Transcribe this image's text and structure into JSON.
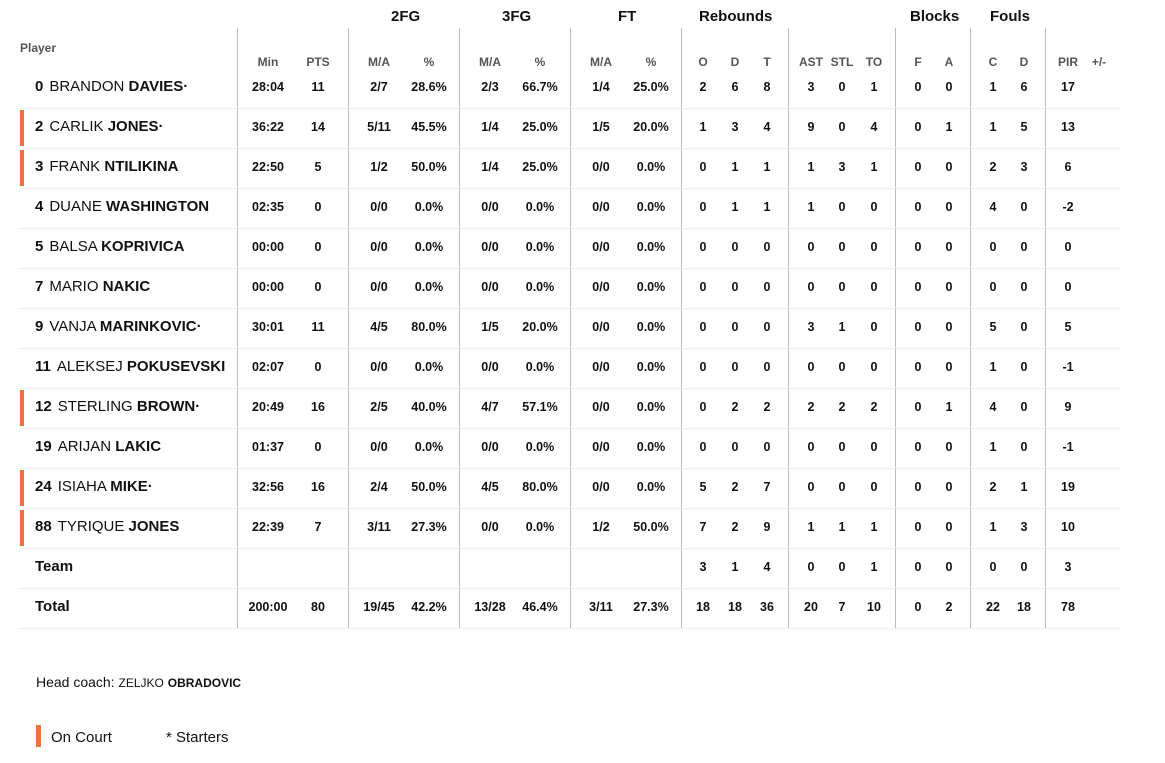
{
  "colors": {
    "on_court": "#e8743b",
    "divider": "#bdbdbd"
  },
  "group_headers": {
    "fg2": "2FG",
    "fg3": "3FG",
    "ft": "FT",
    "reb": "Rebounds",
    "blk": "Blocks",
    "fouls": "Fouls"
  },
  "col_headers": {
    "player": "Player",
    "min": "Min",
    "pts": "PTS",
    "fg2_ma": "M/A",
    "fg2_pct": "%",
    "fg3_ma": "M/A",
    "fg3_pct": "%",
    "ft_ma": "M/A",
    "ft_pct": "%",
    "reb_o": "O",
    "reb_d": "D",
    "reb_t": "T",
    "ast": "AST",
    "stl": "STL",
    "to": "TO",
    "blk_f": "F",
    "blk_a": "A",
    "foul_c": "C",
    "foul_d": "D",
    "pir": "PIR",
    "pm": "+/-"
  },
  "players": [
    {
      "num": "0",
      "first": "BRANDON",
      "last": "DAVIES·",
      "on_court": false,
      "min": "28:04",
      "pts": "11",
      "fg2_ma": "2/7",
      "fg2_pct": "28.6%",
      "fg3_ma": "2/3",
      "fg3_pct": "66.7%",
      "ft_ma": "1/4",
      "ft_pct": "25.0%",
      "o": "2",
      "d": "6",
      "t": "8",
      "ast": "3",
      "stl": "0",
      "to": "1",
      "bf": "0",
      "ba": "0",
      "fc": "1",
      "fd": "6",
      "pir": "17",
      "pm": ""
    },
    {
      "num": "2",
      "first": "CARLIK",
      "last": "JONES·",
      "on_court": true,
      "min": "36:22",
      "pts": "14",
      "fg2_ma": "5/11",
      "fg2_pct": "45.5%",
      "fg3_ma": "1/4",
      "fg3_pct": "25.0%",
      "ft_ma": "1/5",
      "ft_pct": "20.0%",
      "o": "1",
      "d": "3",
      "t": "4",
      "ast": "9",
      "stl": "0",
      "to": "4",
      "bf": "0",
      "ba": "1",
      "fc": "1",
      "fd": "5",
      "pir": "13",
      "pm": ""
    },
    {
      "num": "3",
      "first": "FRANK",
      "last": "NTILIKINA",
      "on_court": true,
      "min": "22:50",
      "pts": "5",
      "fg2_ma": "1/2",
      "fg2_pct": "50.0%",
      "fg3_ma": "1/4",
      "fg3_pct": "25.0%",
      "ft_ma": "0/0",
      "ft_pct": "0.0%",
      "o": "0",
      "d": "1",
      "t": "1",
      "ast": "1",
      "stl": "3",
      "to": "1",
      "bf": "0",
      "ba": "0",
      "fc": "2",
      "fd": "3",
      "pir": "6",
      "pm": ""
    },
    {
      "num": "4",
      "first": "DUANE",
      "last": "WASHINGTON",
      "on_court": false,
      "min": "02:35",
      "pts": "0",
      "fg2_ma": "0/0",
      "fg2_pct": "0.0%",
      "fg3_ma": "0/0",
      "fg3_pct": "0.0%",
      "ft_ma": "0/0",
      "ft_pct": "0.0%",
      "o": "0",
      "d": "1",
      "t": "1",
      "ast": "1",
      "stl": "0",
      "to": "0",
      "bf": "0",
      "ba": "0",
      "fc": "4",
      "fd": "0",
      "pir": "-2",
      "pm": ""
    },
    {
      "num": "5",
      "first": "BALSA",
      "last": "KOPRIVICA",
      "on_court": false,
      "min": "00:00",
      "pts": "0",
      "fg2_ma": "0/0",
      "fg2_pct": "0.0%",
      "fg3_ma": "0/0",
      "fg3_pct": "0.0%",
      "ft_ma": "0/0",
      "ft_pct": "0.0%",
      "o": "0",
      "d": "0",
      "t": "0",
      "ast": "0",
      "stl": "0",
      "to": "0",
      "bf": "0",
      "ba": "0",
      "fc": "0",
      "fd": "0",
      "pir": "0",
      "pm": ""
    },
    {
      "num": "7",
      "first": "MARIO",
      "last": "NAKIC",
      "on_court": false,
      "min": "00:00",
      "pts": "0",
      "fg2_ma": "0/0",
      "fg2_pct": "0.0%",
      "fg3_ma": "0/0",
      "fg3_pct": "0.0%",
      "ft_ma": "0/0",
      "ft_pct": "0.0%",
      "o": "0",
      "d": "0",
      "t": "0",
      "ast": "0",
      "stl": "0",
      "to": "0",
      "bf": "0",
      "ba": "0",
      "fc": "0",
      "fd": "0",
      "pir": "0",
      "pm": ""
    },
    {
      "num": "9",
      "first": "VANJA",
      "last": "MARINKOVIC·",
      "on_court": false,
      "min": "30:01",
      "pts": "11",
      "fg2_ma": "4/5",
      "fg2_pct": "80.0%",
      "fg3_ma": "1/5",
      "fg3_pct": "20.0%",
      "ft_ma": "0/0",
      "ft_pct": "0.0%",
      "o": "0",
      "d": "0",
      "t": "0",
      "ast": "3",
      "stl": "1",
      "to": "0",
      "bf": "0",
      "ba": "0",
      "fc": "5",
      "fd": "0",
      "pir": "5",
      "pm": ""
    },
    {
      "num": "11",
      "first": "ALEKSEJ",
      "last": "POKUSEVSKI",
      "on_court": false,
      "min": "02:07",
      "pts": "0",
      "fg2_ma": "0/0",
      "fg2_pct": "0.0%",
      "fg3_ma": "0/0",
      "fg3_pct": "0.0%",
      "ft_ma": "0/0",
      "ft_pct": "0.0%",
      "o": "0",
      "d": "0",
      "t": "0",
      "ast": "0",
      "stl": "0",
      "to": "0",
      "bf": "0",
      "ba": "0",
      "fc": "1",
      "fd": "0",
      "pir": "-1",
      "pm": ""
    },
    {
      "num": "12",
      "first": "STERLING",
      "last": "BROWN·",
      "on_court": true,
      "min": "20:49",
      "pts": "16",
      "fg2_ma": "2/5",
      "fg2_pct": "40.0%",
      "fg3_ma": "4/7",
      "fg3_pct": "57.1%",
      "ft_ma": "0/0",
      "ft_pct": "0.0%",
      "o": "0",
      "d": "2",
      "t": "2",
      "ast": "2",
      "stl": "2",
      "to": "2",
      "bf": "0",
      "ba": "1",
      "fc": "4",
      "fd": "0",
      "pir": "9",
      "pm": ""
    },
    {
      "num": "19",
      "first": "ARIJAN",
      "last": "LAKIC",
      "on_court": false,
      "min": "01:37",
      "pts": "0",
      "fg2_ma": "0/0",
      "fg2_pct": "0.0%",
      "fg3_ma": "0/0",
      "fg3_pct": "0.0%",
      "ft_ma": "0/0",
      "ft_pct": "0.0%",
      "o": "0",
      "d": "0",
      "t": "0",
      "ast": "0",
      "stl": "0",
      "to": "0",
      "bf": "0",
      "ba": "0",
      "fc": "1",
      "fd": "0",
      "pir": "-1",
      "pm": ""
    },
    {
      "num": "24",
      "first": "ISIAHA",
      "last": "MIKE·",
      "on_court": true,
      "min": "32:56",
      "pts": "16",
      "fg2_ma": "2/4",
      "fg2_pct": "50.0%",
      "fg3_ma": "4/5",
      "fg3_pct": "80.0%",
      "ft_ma": "0/0",
      "ft_pct": "0.0%",
      "o": "5",
      "d": "2",
      "t": "7",
      "ast": "0",
      "stl": "0",
      "to": "0",
      "bf": "0",
      "ba": "0",
      "fc": "2",
      "fd": "1",
      "pir": "19",
      "pm": ""
    },
    {
      "num": "88",
      "first": "TYRIQUE",
      "last": "JONES",
      "on_court": true,
      "min": "22:39",
      "pts": "7",
      "fg2_ma": "3/11",
      "fg2_pct": "27.3%",
      "fg3_ma": "0/0",
      "fg3_pct": "0.0%",
      "ft_ma": "1/2",
      "ft_pct": "50.0%",
      "o": "7",
      "d": "2",
      "t": "9",
      "ast": "1",
      "stl": "1",
      "to": "1",
      "bf": "0",
      "ba": "0",
      "fc": "1",
      "fd": "3",
      "pir": "10",
      "pm": ""
    }
  ],
  "team": {
    "label": "Team",
    "min": "",
    "pts": "",
    "fg2_ma": "",
    "fg2_pct": "",
    "fg3_ma": "",
    "fg3_pct": "",
    "ft_ma": "",
    "ft_pct": "",
    "o": "3",
    "d": "1",
    "t": "4",
    "ast": "0",
    "stl": "0",
    "to": "1",
    "bf": "0",
    "ba": "0",
    "fc": "0",
    "fd": "0",
    "pir": "3",
    "pm": ""
  },
  "total": {
    "label": "Total",
    "min": "200:00",
    "pts": "80",
    "fg2_ma": "19/45",
    "fg2_pct": "42.2%",
    "fg3_ma": "13/28",
    "fg3_pct": "46.4%",
    "ft_ma": "3/11",
    "ft_pct": "27.3%",
    "o": "18",
    "d": "18",
    "t": "36",
    "ast": "20",
    "stl": "7",
    "to": "10",
    "bf": "0",
    "ba": "2",
    "fc": "22",
    "fd": "18",
    "pir": "78",
    "pm": ""
  },
  "coach": {
    "label": "Head coach:",
    "first": "ZELJKO",
    "last": "OBRADOVIC"
  },
  "legend": {
    "on_court": "On Court",
    "starters": "* Starters"
  }
}
